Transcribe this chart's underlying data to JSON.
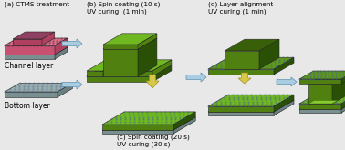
{
  "bg_color": "#e8e8e8",
  "labels": {
    "a": "(a) CTMS treatment",
    "b_line1": "(b) Spin coating (10 s)",
    "b_line2": "UV curing  (1 min)",
    "c_line1": "(c) Spin coating (20 s)",
    "c_line2": "UV curing (30 s)",
    "d_line1": "(d) Layer alignment",
    "d_line2": "UV curing (1 min)",
    "channel": "Channel layer",
    "bottom": "Bottom layer"
  },
  "colors": {
    "pink_top": "#e0708a",
    "pink_side": "#b04060",
    "pink_front": "#c85070",
    "pink_dark": "#904060",
    "gray_top": "#98acac",
    "gray_side": "#6a8080",
    "gray_front": "#7a9090",
    "green_bright": "#70b820",
    "green_mid": "#508010",
    "green_dark": "#386008",
    "green_side": "#2a5005",
    "green_light_top": "#88c830",
    "green_base_top": "#609818",
    "arrow_blue": "#a8cce0",
    "arrow_blue_edge": "#6090b0",
    "arrow_yellow": "#d8c848",
    "arrow_yellow_edge": "#a09020",
    "dot_blue": "#4060a0",
    "dot_pink": "#603050"
  },
  "figsize": [
    3.78,
    1.65
  ],
  "dpi": 100
}
